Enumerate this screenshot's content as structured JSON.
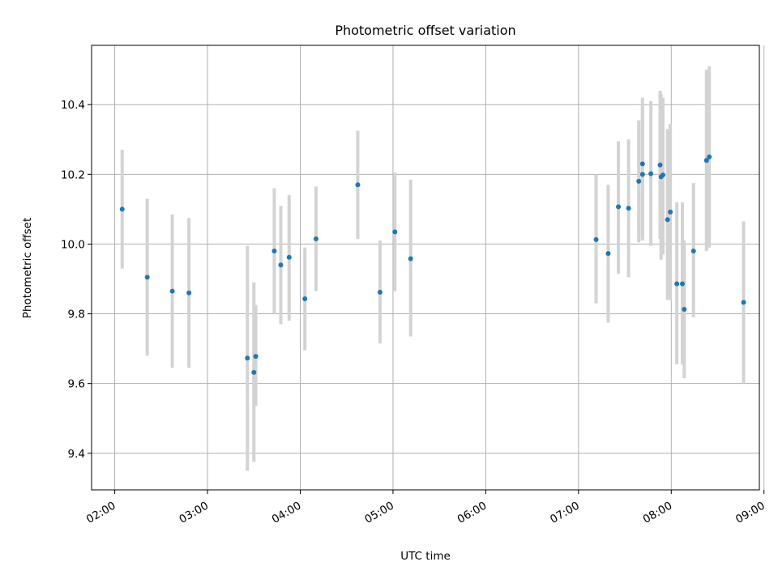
{
  "chart_data": {
    "type": "scatter",
    "title": "Photometric offset variation",
    "xlabel": "UTC time",
    "ylabel": "Photometric offset",
    "x_unit": "hours UTC",
    "xlim": [
      1.75,
      8.95
    ],
    "ylim": [
      9.295,
      10.57
    ],
    "grid": true,
    "x_ticks": [
      {
        "value": 2,
        "label": "02:00"
      },
      {
        "value": 3,
        "label": "03:00"
      },
      {
        "value": 4,
        "label": "04:00"
      },
      {
        "value": 5,
        "label": "05:00"
      },
      {
        "value": 6,
        "label": "06:00"
      },
      {
        "value": 7,
        "label": "07:00"
      },
      {
        "value": 8,
        "label": "08:00"
      },
      {
        "value": 9,
        "label": "09:00"
      }
    ],
    "y_ticks": [
      {
        "value": 9.4,
        "label": "9.4"
      },
      {
        "value": 9.6,
        "label": "9.6"
      },
      {
        "value": 9.8,
        "label": "9.8"
      },
      {
        "value": 10.0,
        "label": "10.0"
      },
      {
        "value": 10.2,
        "label": "10.2"
      },
      {
        "value": 10.4,
        "label": "10.4"
      }
    ],
    "colors": {
      "point": "#1f77b4",
      "errorbar": "#d3d3d3",
      "grid": "#b0b0b0"
    },
    "series": [
      {
        "name": "offset",
        "points": [
          {
            "x": 2.08,
            "y": 10.1,
            "lo": 9.93,
            "hi": 10.27
          },
          {
            "x": 2.35,
            "y": 9.905,
            "lo": 9.68,
            "hi": 10.13
          },
          {
            "x": 2.62,
            "y": 9.865,
            "lo": 9.645,
            "hi": 10.085
          },
          {
            "x": 2.8,
            "y": 9.86,
            "lo": 9.645,
            "hi": 10.075
          },
          {
            "x": 3.43,
            "y": 9.673,
            "lo": 9.35,
            "hi": 9.995
          },
          {
            "x": 3.5,
            "y": 9.632,
            "lo": 9.375,
            "hi": 9.89
          },
          {
            "x": 3.52,
            "y": 9.678,
            "lo": 9.535,
            "hi": 9.825
          },
          {
            "x": 3.72,
            "y": 9.98,
            "lo": 9.8,
            "hi": 10.16
          },
          {
            "x": 3.79,
            "y": 9.94,
            "lo": 9.77,
            "hi": 10.11
          },
          {
            "x": 3.88,
            "y": 9.962,
            "lo": 9.78,
            "hi": 10.14
          },
          {
            "x": 4.05,
            "y": 9.843,
            "lo": 9.695,
            "hi": 9.99
          },
          {
            "x": 4.17,
            "y": 10.015,
            "lo": 9.865,
            "hi": 10.165
          },
          {
            "x": 4.62,
            "y": 10.17,
            "lo": 10.015,
            "hi": 10.325
          },
          {
            "x": 4.86,
            "y": 9.862,
            "lo": 9.715,
            "hi": 10.01
          },
          {
            "x": 5.02,
            "y": 10.035,
            "lo": 9.865,
            "hi": 10.205
          },
          {
            "x": 5.19,
            "y": 9.958,
            "lo": 9.735,
            "hi": 10.185
          },
          {
            "x": 7.19,
            "y": 10.013,
            "lo": 9.83,
            "hi": 10.2
          },
          {
            "x": 7.32,
            "y": 9.973,
            "lo": 9.775,
            "hi": 10.17
          },
          {
            "x": 7.43,
            "y": 10.107,
            "lo": 9.915,
            "hi": 10.295
          },
          {
            "x": 7.54,
            "y": 10.103,
            "lo": 9.905,
            "hi": 10.3
          },
          {
            "x": 7.65,
            "y": 10.18,
            "lo": 10.005,
            "hi": 10.355
          },
          {
            "x": 7.69,
            "y": 10.23,
            "lo": 10.02,
            "hi": 10.42
          },
          {
            "x": 7.69,
            "y": 10.2,
            "lo": 10.01,
            "hi": 10.39
          },
          {
            "x": 7.78,
            "y": 10.202,
            "lo": 9.995,
            "hi": 10.41
          },
          {
            "x": 7.88,
            "y": 10.227,
            "lo": 10.015,
            "hi": 10.44
          },
          {
            "x": 7.89,
            "y": 10.193,
            "lo": 9.955,
            "hi": 10.43
          },
          {
            "x": 7.91,
            "y": 10.198,
            "lo": 9.97,
            "hi": 10.42
          },
          {
            "x": 7.96,
            "y": 10.07,
            "lo": 9.84,
            "hi": 10.33
          },
          {
            "x": 7.99,
            "y": 10.092,
            "lo": 9.84,
            "hi": 10.345
          },
          {
            "x": 8.06,
            "y": 9.886,
            "lo": 9.655,
            "hi": 10.12
          },
          {
            "x": 8.12,
            "y": 9.886,
            "lo": 9.655,
            "hi": 10.12
          },
          {
            "x": 8.14,
            "y": 9.813,
            "lo": 9.615,
            "hi": 10.01
          },
          {
            "x": 8.24,
            "y": 9.98,
            "lo": 9.79,
            "hi": 10.175
          },
          {
            "x": 8.38,
            "y": 10.24,
            "lo": 9.98,
            "hi": 10.5
          },
          {
            "x": 8.41,
            "y": 10.25,
            "lo": 9.99,
            "hi": 10.51
          },
          {
            "x": 8.78,
            "y": 9.833,
            "lo": 9.6,
            "hi": 10.065
          }
        ]
      }
    ]
  }
}
